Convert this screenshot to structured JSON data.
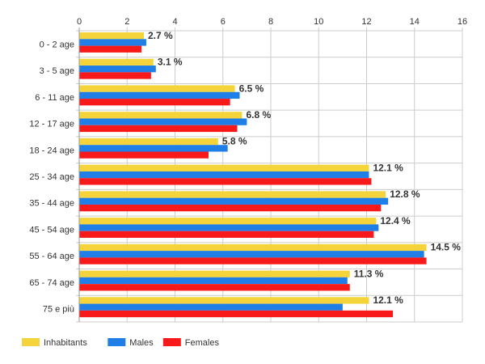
{
  "chart_data": {
    "type": "bar",
    "orientation": "horizontal",
    "categories": [
      "0 - 2 age",
      "3 - 5 age",
      "6 - 11 age",
      "12 - 17 age",
      "18 - 24 age",
      "25 - 34 age",
      "35 - 44 age",
      "45 - 54 age",
      "55 - 64 age",
      "65 - 74 age",
      "75 e più"
    ],
    "series": [
      {
        "name": "Inhabitants",
        "color": "#f5d33a",
        "values": [
          2.7,
          3.1,
          6.5,
          6.8,
          5.8,
          12.1,
          12.8,
          12.4,
          14.5,
          11.3,
          12.1
        ]
      },
      {
        "name": "Males",
        "color": "#1f7fe6",
        "values": [
          2.8,
          3.2,
          6.7,
          7.0,
          6.2,
          12.1,
          12.9,
          12.5,
          14.4,
          11.2,
          11.0
        ]
      },
      {
        "name": "Females",
        "color": "#f81a1a",
        "values": [
          2.6,
          3.0,
          6.3,
          6.6,
          5.4,
          12.2,
          12.6,
          12.3,
          14.5,
          11.3,
          13.1
        ]
      }
    ],
    "data_labels": [
      "2.7 %",
      "3.1 %",
      "6.5 %",
      "6.8 %",
      "5.8 %",
      "12.1 %",
      "12.8 %",
      "12.4 %",
      "14.5 %",
      "11.3 %",
      "12.1 %"
    ],
    "xlim": [
      0,
      16
    ],
    "x_ticks": [
      0,
      2,
      4,
      6,
      8,
      10,
      12,
      14,
      16
    ],
    "x_axis_position": "top",
    "grid": true,
    "legend_position": "bottom-left",
    "title": "",
    "xlabel": "",
    "ylabel": ""
  }
}
